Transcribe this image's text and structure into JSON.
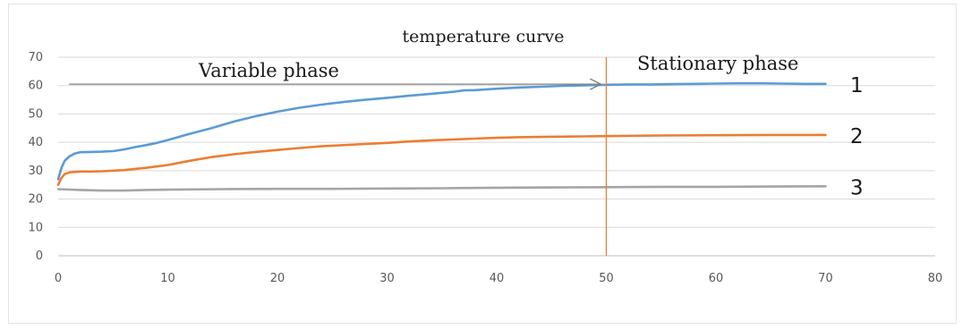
{
  "chart_data": {
    "type": "line",
    "title": "temperature curve",
    "xlim": [
      0,
      80
    ],
    "ylim": [
      0,
      70
    ],
    "x_ticks": [
      "0",
      "10",
      "20",
      "30",
      "40",
      "50",
      "60",
      "70",
      "80"
    ],
    "y_ticks": [
      "0",
      "10",
      "20",
      "30",
      "40",
      "50",
      "60",
      "70"
    ],
    "grid": "horizontal",
    "series": [
      {
        "name": "1",
        "color": "#5b9bd5",
        "points": [
          [
            0,
            27
          ],
          [
            0.3,
            31
          ],
          [
            0.6,
            33.5
          ],
          [
            1,
            35
          ],
          [
            1.5,
            36
          ],
          [
            2,
            36.5
          ],
          [
            3,
            36.6
          ],
          [
            4,
            36.7
          ],
          [
            5,
            36.9
          ],
          [
            6,
            37.5
          ],
          [
            7,
            38.3
          ],
          [
            8,
            39
          ],
          [
            9,
            39.8
          ],
          [
            10,
            40.8
          ],
          [
            12,
            43
          ],
          [
            14,
            45
          ],
          [
            16,
            47.3
          ],
          [
            18,
            49.2
          ],
          [
            20,
            50.8
          ],
          [
            22,
            52.2
          ],
          [
            24,
            53.3
          ],
          [
            26,
            54.2
          ],
          [
            28,
            55
          ],
          [
            30,
            55.7
          ],
          [
            32,
            56.4
          ],
          [
            34,
            57.1
          ],
          [
            36,
            57.8
          ],
          [
            37,
            58.3
          ],
          [
            38,
            58.4
          ],
          [
            40,
            58.9
          ],
          [
            42,
            59.3
          ],
          [
            44,
            59.6
          ],
          [
            46,
            59.9
          ],
          [
            48,
            60.1
          ],
          [
            50,
            60.3
          ],
          [
            52,
            60.4
          ],
          [
            54,
            60.4
          ],
          [
            56,
            60.5
          ],
          [
            58,
            60.6
          ],
          [
            60,
            60.7
          ],
          [
            62,
            60.8
          ],
          [
            64,
            60.8
          ],
          [
            66,
            60.7
          ],
          [
            68,
            60.6
          ],
          [
            70,
            60.6
          ]
        ]
      },
      {
        "name": "2",
        "color": "#ed7d31",
        "points": [
          [
            0,
            25
          ],
          [
            0.3,
            27.5
          ],
          [
            0.6,
            28.8
          ],
          [
            1,
            29.4
          ],
          [
            2,
            29.7
          ],
          [
            3,
            29.7
          ],
          [
            4,
            29.8
          ],
          [
            6,
            30.2
          ],
          [
            8,
            31
          ],
          [
            10,
            32
          ],
          [
            12,
            33.5
          ],
          [
            14,
            34.8
          ],
          [
            16,
            35.8
          ],
          [
            18,
            36.6
          ],
          [
            20,
            37.3
          ],
          [
            22,
            38
          ],
          [
            24,
            38.6
          ],
          [
            26,
            39
          ],
          [
            28,
            39.4
          ],
          [
            30,
            39.8
          ],
          [
            32,
            40.3
          ],
          [
            34,
            40.7
          ],
          [
            36,
            41
          ],
          [
            38,
            41.3
          ],
          [
            40,
            41.6
          ],
          [
            42,
            41.8
          ],
          [
            44,
            41.9
          ],
          [
            46,
            42
          ],
          [
            48,
            42.1
          ],
          [
            50,
            42.2
          ],
          [
            55,
            42.4
          ],
          [
            60,
            42.5
          ],
          [
            65,
            42.6
          ],
          [
            70,
            42.6
          ]
        ]
      },
      {
        "name": "3",
        "color": "#a5a5a5",
        "points": [
          [
            0,
            23.5
          ],
          [
            2,
            23.2
          ],
          [
            4,
            23
          ],
          [
            6,
            23
          ],
          [
            8,
            23.2
          ],
          [
            10,
            23.3
          ],
          [
            15,
            23.5
          ],
          [
            20,
            23.6
          ],
          [
            25,
            23.6
          ],
          [
            30,
            23.7
          ],
          [
            35,
            23.8
          ],
          [
            40,
            24
          ],
          [
            45,
            24.1
          ],
          [
            50,
            24.2
          ],
          [
            55,
            24.3
          ],
          [
            60,
            24.3
          ],
          [
            65,
            24.4
          ],
          [
            70,
            24.5
          ]
        ]
      }
    ],
    "annotations": {
      "left_phase": "Variable phase",
      "right_phase": "Stationary phase",
      "arrow_y": 60.5,
      "arrow_x_start": 1,
      "arrow_x_end": 49.5,
      "divider_x": 50,
      "divider_color": "#ed7d31",
      "arrow_color": "#7f7f7f"
    },
    "gridline_color": "#d9d9d9",
    "axis_color": "#bfbfbf"
  }
}
